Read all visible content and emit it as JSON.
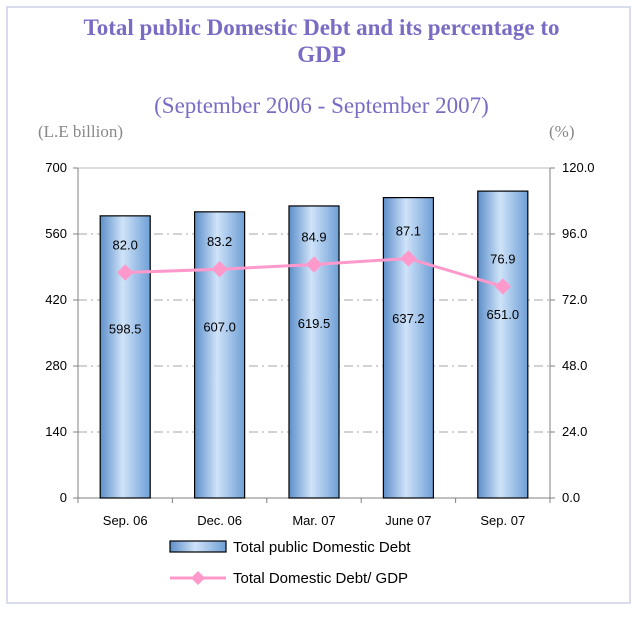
{
  "chart_data": {
    "type": "bar+line",
    "title_line1": "Total public Domestic Debt and its percentage to",
    "title_line2": "GDP",
    "subtitle": "(September 2006 - September 2007)",
    "ylabel_left": "(L.E billion)",
    "ylabel_right": "(%)",
    "categories": [
      "Sep. 06",
      "Dec. 06",
      "Mar. 07",
      "June 07",
      "Sep. 07"
    ],
    "series": [
      {
        "name": "Total public Domestic Debt",
        "type": "bar",
        "axis": "left",
        "values": [
          598.5,
          607.0,
          619.5,
          637.2,
          651.0
        ],
        "labels": [
          "598.5",
          "607.0",
          "619.5",
          "637.2",
          "651.0"
        ],
        "color": "#9fc4ee"
      },
      {
        "name": "Total Domestic Debt/ GDP",
        "type": "line",
        "axis": "right",
        "values": [
          82.0,
          83.2,
          84.9,
          87.1,
          76.9
        ],
        "labels": [
          "82.0",
          "83.2",
          "84.9",
          "87.1",
          "76.9"
        ],
        "color": "#ff99cc"
      }
    ],
    "ylim_left": [
      0,
      700
    ],
    "yticks_left": [
      "0",
      "140",
      "280",
      "420",
      "560",
      "700"
    ],
    "ylim_right": [
      0,
      120
    ],
    "yticks_right": [
      "0.0",
      "24.0",
      "48.0",
      "72.0",
      "96.0",
      "120.0"
    ],
    "grid": true,
    "legend_position": "bottom"
  }
}
